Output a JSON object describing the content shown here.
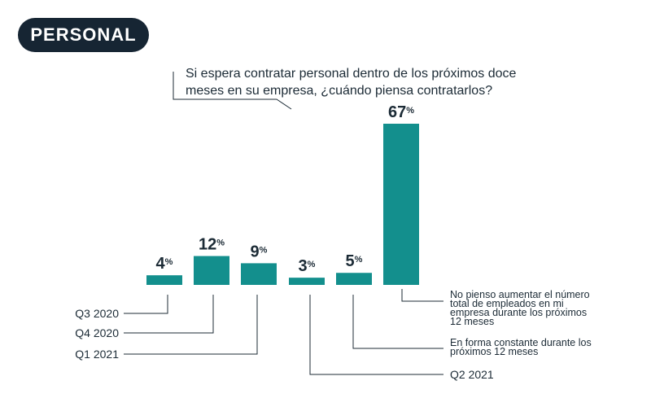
{
  "badge": "PERSONAL",
  "question": "Si espera contratar personal dentro de los próximos doce meses en su empresa, ¿cuándo piensa contratarlos?",
  "colors": {
    "bar": "#138f8d",
    "line": "#1c2b36",
    "badge_bg": "#162533"
  },
  "chart_data": {
    "type": "bar",
    "title": "Si espera contratar personal dentro de los próximos doce meses en su empresa, ¿cuándo piensa contratarlos?",
    "unit": "%",
    "categories": [
      "Q3 2020",
      "Q4 2020",
      "Q1 2021",
      "Q2 2021",
      "En forma constante durante los próximos 12 meses",
      "No pienso aumentar el número total de empleados en mi empresa durante los próximos 12 meses"
    ],
    "label_lines": [
      [
        "Q3 2020"
      ],
      [
        "Q4 2020"
      ],
      [
        "Q1 2021"
      ],
      [
        "Q2 2021"
      ],
      [
        "En forma constante durante los",
        "próximos 12 meses"
      ],
      [
        "No pienso aumentar el número",
        "total de empleados en mi",
        "empresa durante los próximos",
        "12 meses"
      ]
    ],
    "values": [
      4,
      12,
      9,
      3,
      5,
      67
    ],
    "ylim": [
      0,
      67
    ]
  }
}
